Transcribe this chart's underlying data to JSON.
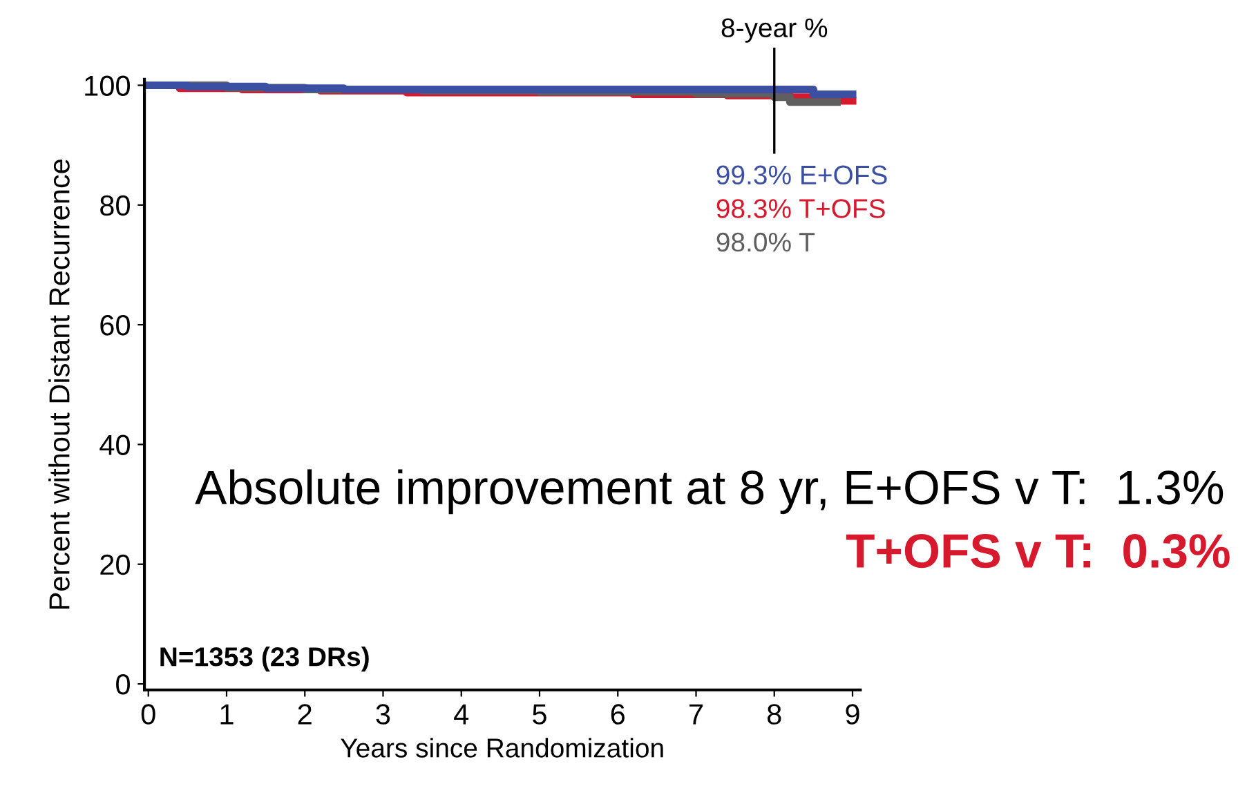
{
  "chart_data": {
    "type": "step",
    "xlabel": "Years since Randomization",
    "ylabel": "Percent without Distant Recurrence",
    "series": [
      {
        "color": "#d7192d",
        "x": [
          0,
          0.4,
          1.2,
          2.2,
          3.3,
          6.2,
          7.4,
          8.2,
          8.6,
          9.0
        ],
        "values": [
          100,
          99.5,
          99.3,
          99.1,
          98.8,
          98.5,
          98.3,
          98.0,
          97.4,
          97.4
        ]
      },
      {
        "color": "#5f5f5f",
        "x": [
          0,
          1.0,
          2.0,
          3.5,
          5.0,
          7.0,
          8.0,
          8.2,
          8.8
        ],
        "values": [
          100,
          99.6,
          99.3,
          99.1,
          98.9,
          98.6,
          98.0,
          97.2,
          97.2
        ]
      },
      {
        "color": "#3b4fa3",
        "x": [
          0,
          0.5,
          1.5,
          2.5,
          4.0,
          8.5,
          9.0
        ],
        "values": [
          100,
          99.8,
          99.5,
          99.3,
          99.3,
          98.5,
          98.5
        ]
      }
    ],
    "xlim": [
      -0.05,
      9.1
    ],
    "xticks": [
      0,
      1,
      2,
      3,
      4,
      5,
      6,
      7,
      8,
      9
    ],
    "ylim": [
      -1,
      101
    ],
    "yticks": [
      0,
      20,
      40,
      60,
      80,
      100
    ],
    "ref_lines": [
      {
        "axis": "x",
        "value": 8,
        "label": "8-year %",
        "color": "#000000"
      }
    ],
    "annotations": [
      "99.3% E+OFS",
      "98.3% T+OFS",
      "98.0% T",
      "Absolute improvement at 8 yr, E+OFS v T:  1.3%",
      "T+OFS v T:  0.3%",
      "N=1353 (23 DRs)"
    ],
    "grid": false,
    "legend": false
  }
}
